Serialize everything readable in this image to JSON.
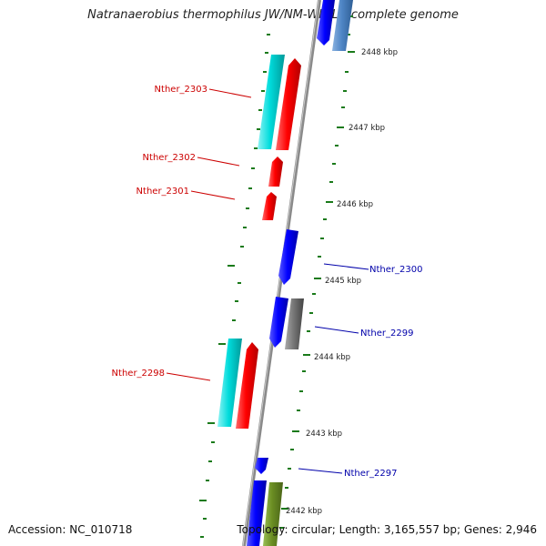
{
  "title": "Natranaerobius thermophilus JW/NM-WN-LF, complete genome",
  "accession": "Accession: NC_010718",
  "summary": "Topology: circular; Length: 3,165,557 bp; Genes: 2,946",
  "ticks": [
    "2448 kbp",
    "2447 kbp",
    "2446 kbp",
    "2445 kbp",
    "2444 kbp",
    "2443 kbp",
    "2442 kbp"
  ],
  "gene_labels": {
    "g2303": "Nther_2303",
    "g2302": "Nther_2302",
    "g2301": "Nther_2301",
    "g2300": "Nther_2300",
    "g2299": "Nther_2299",
    "g2298": "Nther_2298",
    "g2297": "Nther_2297"
  },
  "colors": {
    "backbone": "#888888",
    "ticks": "#1a7a1a",
    "forward_gene": "#ff0000",
    "reverse_gene": "#0000ff",
    "cyan_feature": "#00dcdc",
    "gray_feature": "#777777",
    "olive_feature": "#6b8e23",
    "steelblue_feature": "#4f86c6",
    "left_label": "#cc0000",
    "right_label": "#0000aa"
  }
}
